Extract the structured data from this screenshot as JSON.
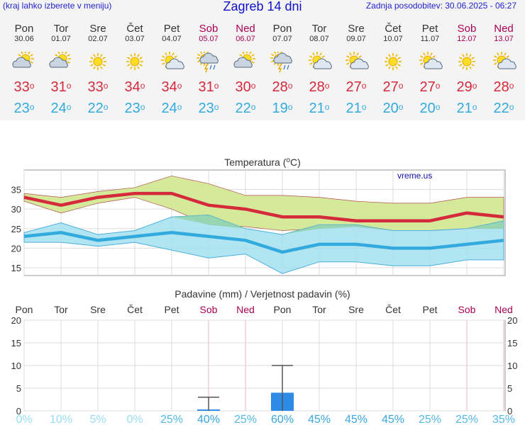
{
  "header": {
    "left": "(kraj lahko izberete v meniju)",
    "title": "Zagreb 14 dni",
    "right": "Zadnja posodobitev: 30.06.2025 - 06:27"
  },
  "days": [
    {
      "name": "Pon",
      "date": "30.06",
      "max": "33",
      "min": "23",
      "icon": "partly-cloudy-icon",
      "weekend": false
    },
    {
      "name": "Tor",
      "date": "01.07",
      "max": "31",
      "min": "24",
      "icon": "partly-cloudy-icon",
      "weekend": false
    },
    {
      "name": "Sre",
      "date": "02.07",
      "max": "33",
      "min": "22",
      "icon": "sun-icon",
      "weekend": false
    },
    {
      "name": "Čet",
      "date": "03.07",
      "max": "34",
      "min": "23",
      "icon": "sun-icon",
      "weekend": false
    },
    {
      "name": "Pet",
      "date": "04.07",
      "max": "34",
      "min": "24",
      "icon": "sun-cloud-icon",
      "weekend": false
    },
    {
      "name": "Sob",
      "date": "05.07",
      "max": "31",
      "min": "23",
      "icon": "thunderstorm-icon",
      "weekend": true
    },
    {
      "name": "Ned",
      "date": "06.07",
      "max": "30",
      "min": "22",
      "icon": "partly-cloudy-icon",
      "weekend": true
    },
    {
      "name": "Pon",
      "date": "07.07",
      "max": "28",
      "min": "19",
      "icon": "thunderstorm-icon",
      "weekend": false
    },
    {
      "name": "Tor",
      "date": "08.07",
      "max": "28",
      "min": "21",
      "icon": "sun-cloud-icon",
      "weekend": false
    },
    {
      "name": "Sre",
      "date": "09.07",
      "max": "27",
      "min": "21",
      "icon": "sun-cloud-icon",
      "weekend": false
    },
    {
      "name": "Čet",
      "date": "10.07",
      "max": "27",
      "min": "20",
      "icon": "sun-icon",
      "weekend": false
    },
    {
      "name": "Pet",
      "date": "11.07",
      "max": "27",
      "min": "20",
      "icon": "sun-cloud-icon",
      "weekend": false
    },
    {
      "name": "Sob",
      "date": "12.07",
      "max": "29",
      "min": "21",
      "icon": "sun-icon",
      "weekend": true
    },
    {
      "name": "Ned",
      "date": "13.07",
      "max": "28",
      "min": "22",
      "icon": "sun-cloud-icon",
      "weekend": true
    }
  ],
  "colors": {
    "max": "#d42a3c",
    "min": "#33aadd",
    "weekend": "#aa0055",
    "max_band": "#d4e99a",
    "min_band": "#a2e0ee",
    "overlap": "#86cc88",
    "precip_bar": "#2d8be6",
    "prob_low": "#99ddf0",
    "prob_high": "#3aa6e0"
  },
  "chart_data": [
    {
      "type": "line",
      "title": "Temperatura (°C)",
      "watermark": "vreme.us",
      "categories": [
        "Pon",
        "Tor",
        "Sre",
        "Čet",
        "Pet",
        "Sob",
        "Ned",
        "Pon",
        "Tor",
        "Sre",
        "Čet",
        "Pet",
        "Sob",
        "Ned"
      ],
      "ylim": [
        13,
        40
      ],
      "yticks": [
        15,
        20,
        25,
        30,
        35
      ],
      "grid": true,
      "series": [
        {
          "values": [
            33,
            31,
            33,
            34,
            34,
            31,
            30,
            28,
            28,
            27,
            27,
            27,
            29,
            28
          ]
        },
        {
          "values": [
            23,
            24,
            22,
            23,
            24,
            23,
            22,
            19,
            21,
            21,
            20,
            20,
            21,
            22
          ]
        }
      ],
      "bands": [
        {
          "upper": [
            34,
            33,
            34.5,
            35.5,
            38.5,
            36.5,
            33.5,
            33.5,
            33,
            32,
            31.5,
            31.5,
            33,
            33
          ],
          "lower": [
            32,
            29,
            31.5,
            33,
            30,
            26,
            25.5,
            24.5,
            25,
            25.5,
            24.5,
            24.5,
            25,
            25
          ]
        },
        {
          "upper": [
            24,
            26.5,
            23.5,
            24.5,
            28,
            28.5,
            25,
            23.5,
            26,
            26,
            24.5,
            24.5,
            25,
            27
          ],
          "lower": [
            21.5,
            21.5,
            20.5,
            21.5,
            19.5,
            17.5,
            18.5,
            13.5,
            16.5,
            16.5,
            15.5,
            15.5,
            17,
            17
          ]
        }
      ]
    },
    {
      "type": "bar",
      "title": "Padavine (mm) / Verjetnost padavin (%)",
      "categories": [
        "Pon",
        "Tor",
        "Sre",
        "Čet",
        "Pet",
        "Sob",
        "Ned",
        "Pon",
        "Tor",
        "Sre",
        "Čet",
        "Pet",
        "Sob",
        "Ned"
      ],
      "ylim": [
        0,
        20
      ],
      "yticks": [
        0,
        5,
        10,
        15,
        20
      ],
      "grid": true,
      "values": [
        0,
        0,
        0,
        0,
        0,
        0.3,
        0,
        4,
        0,
        0,
        0,
        0,
        0,
        0
      ],
      "error_high": [
        0,
        0,
        0,
        0,
        0,
        3,
        0,
        10,
        0,
        0,
        0,
        0,
        0,
        0
      ],
      "probability": [
        "0%",
        "10%",
        "5%",
        "0%",
        "25%",
        "40%",
        "25%",
        "60%",
        "45%",
        "45%",
        "45%",
        "25%",
        "25%",
        "35%"
      ]
    }
  ]
}
